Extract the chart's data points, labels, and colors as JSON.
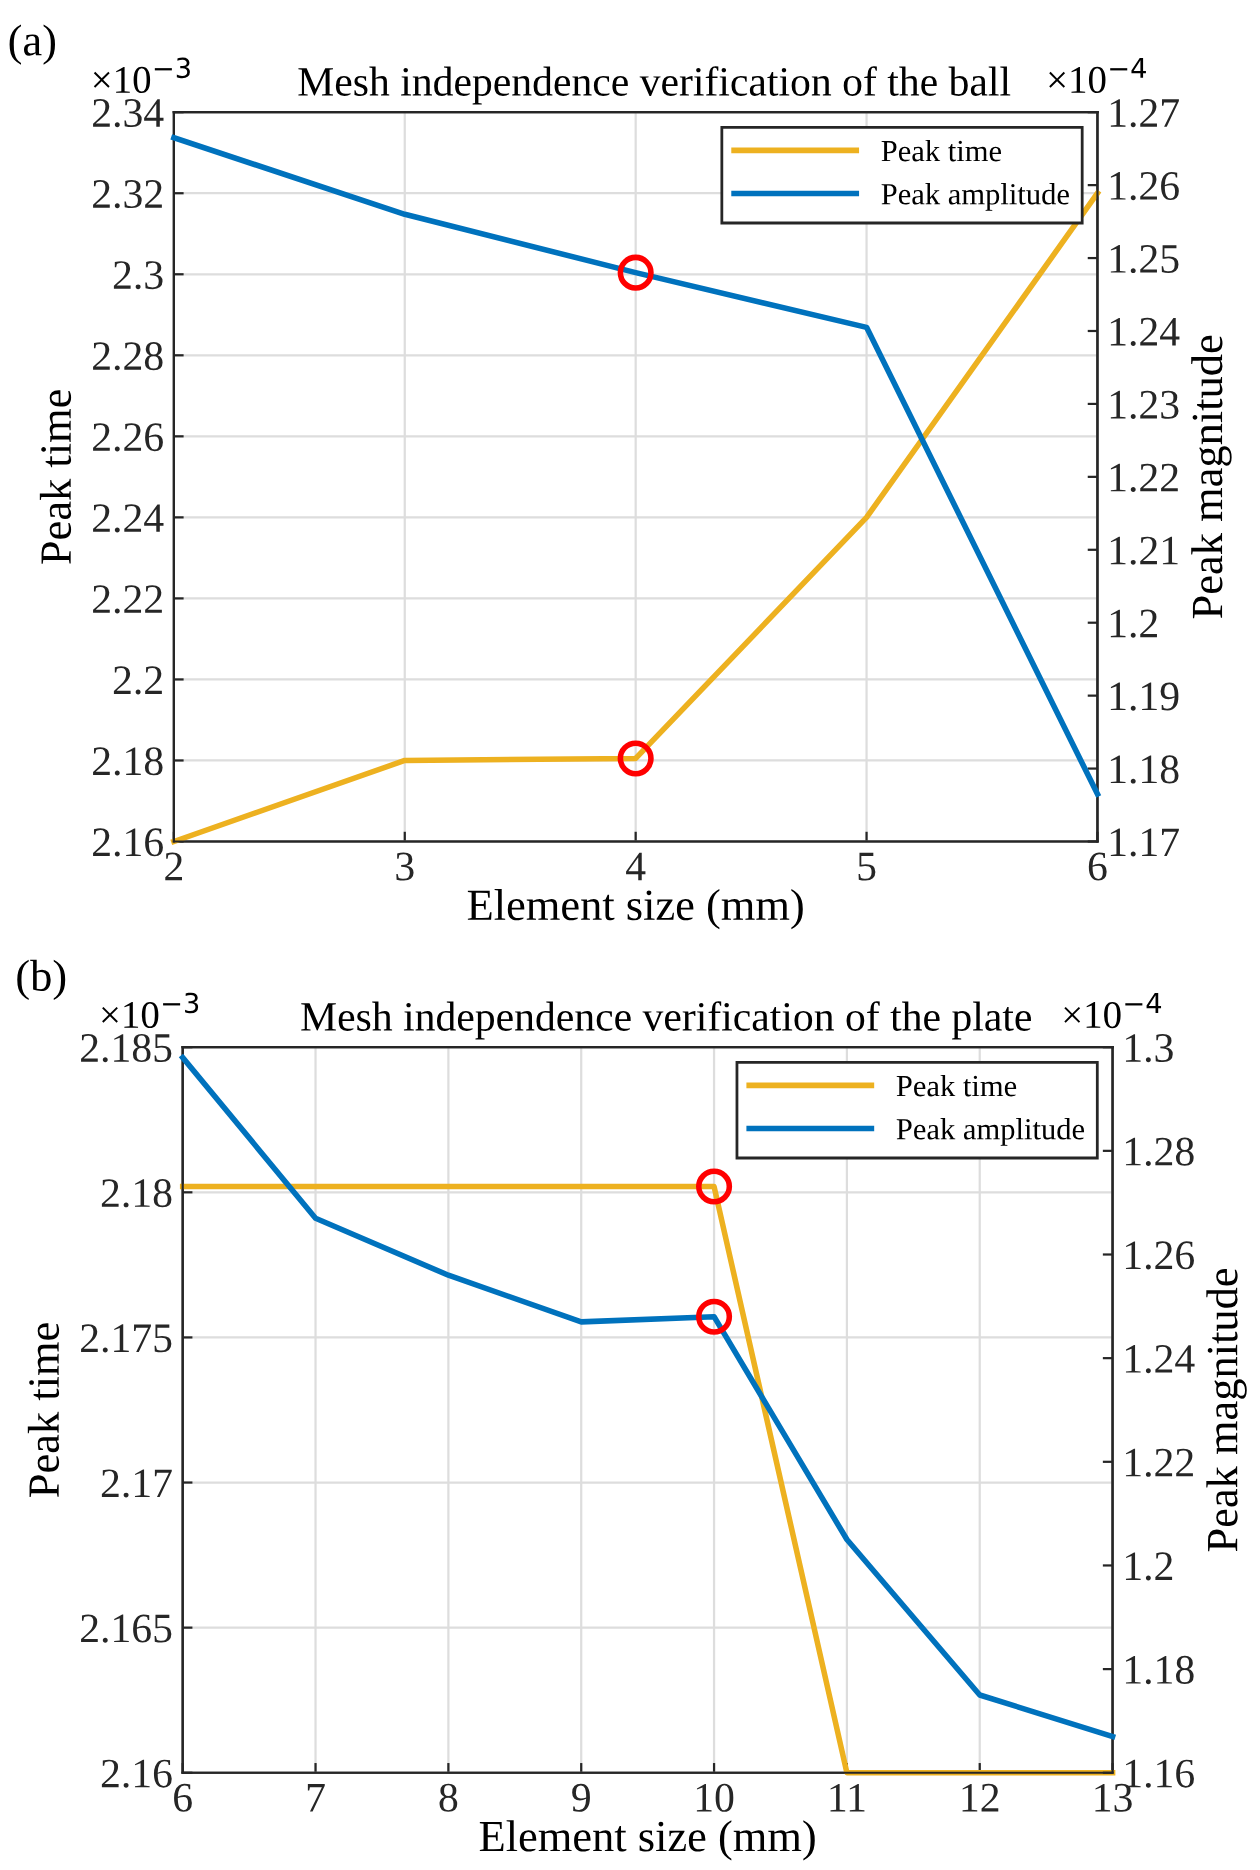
{
  "chart_data": [
    {
      "type": "line",
      "title": "Mesh independence verification of the ball",
      "xlabel": "Element size (mm)",
      "ylabel": "Peak time",
      "y2label": "Peak magnitude",
      "annotations": [
        "(a)",
        "×10$^{−3}$",
        "×10$^{−4}$"
      ],
      "x": [
        2,
        3,
        4,
        5,
        6
      ],
      "series": [
        {
          "name": "Peak time",
          "color": "#edb120",
          "values": [
            2.16,
            2.18,
            2.1805,
            2.24,
            2.32
          ]
        },
        {
          "name": "Peak amplitude",
          "color": "#0072bd",
          "axis": "y2",
          "values": [
            1.2665,
            1.256,
            1.248,
            1.2405,
            1.1765
          ]
        },
        {
          "type": "scatter",
          "color": "#ff0000",
          "marker": "circle",
          "values": [
            null,
            null,
            2.1805,
            null,
            null
          ]
        },
        {
          "type": "scatter",
          "color": "#ff0000",
          "marker": "circle",
          "axis": "y2",
          "values": [
            null,
            null,
            1.248,
            null,
            null
          ]
        }
      ],
      "xlim": [
        2,
        6
      ],
      "xticks": [
        2,
        3,
        4,
        5,
        6
      ],
      "ylim": [
        2.16,
        2.34
      ],
      "yticks": [
        2.16,
        2.18,
        2.2,
        2.22,
        2.24,
        2.26,
        2.28,
        2.3,
        2.32,
        2.34
      ],
      "y2lim": [
        1.17,
        1.27
      ],
      "y2ticks": [
        1.17,
        1.18,
        1.19,
        1.2,
        1.21,
        1.22,
        1.23,
        1.24,
        1.25,
        1.26,
        1.27
      ],
      "grid": true,
      "legend": "top right"
    },
    {
      "type": "line",
      "title": "Mesh independence verification of the plate",
      "xlabel": "Element size (mm)",
      "ylabel": "Peak time",
      "y2label": "Peak magnitude",
      "annotations": [
        "(b)",
        "×10$^{−3}$",
        "×10$^{−4}$"
      ],
      "x": [
        6,
        7,
        8,
        9,
        10,
        11,
        12,
        13
      ],
      "series": [
        {
          "name": "Peak time",
          "color": "#edb120",
          "values": [
            2.1802,
            2.1802,
            2.1802,
            2.1802,
            2.1802,
            2.16,
            2.16,
            2.16
          ]
        },
        {
          "name": "Peak amplitude",
          "color": "#0072bd",
          "axis": "y2",
          "values": [
            1.298,
            1.267,
            1.256,
            1.247,
            1.248,
            1.205,
            1.175,
            1.167
          ]
        },
        {
          "type": "scatter",
          "color": "#ff0000",
          "marker": "circle",
          "values": [
            null,
            null,
            null,
            null,
            2.1802,
            null,
            null,
            null
          ]
        },
        {
          "type": "scatter",
          "color": "#ff0000",
          "marker": "circle",
          "axis": "y2",
          "values": [
            null,
            null,
            null,
            null,
            1.248,
            null,
            null,
            null
          ]
        }
      ],
      "xlim": [
        6,
        13
      ],
      "xticks": [
        6,
        7,
        8,
        9,
        10,
        11,
        12,
        13
      ],
      "ylim": [
        2.16,
        2.185
      ],
      "yticks": [
        2.16,
        2.165,
        2.17,
        2.175,
        2.18,
        2.185
      ],
      "y2lim": [
        1.16,
        1.3
      ],
      "y2ticks": [
        1.16,
        1.18,
        1.2,
        1.22,
        1.24,
        1.26,
        1.28,
        1.3
      ],
      "grid": true,
      "legend": "top right"
    }
  ]
}
